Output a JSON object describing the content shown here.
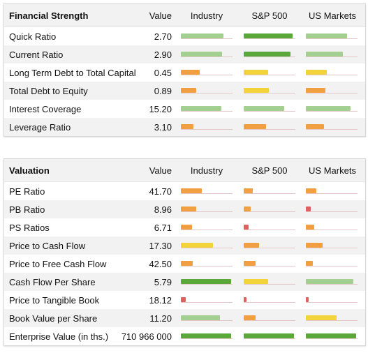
{
  "colors": {
    "dark_green": "#5aa83a",
    "light_green": "#a3cf90",
    "orange": "#f0a040",
    "yellow": "#f2d43a",
    "red": "#e06060"
  },
  "financial_strength": {
    "headers": {
      "title": "Financial Strength",
      "value": "Value",
      "industry": "Industry",
      "sp500": "S&P 500",
      "us_markets": "US Markets"
    },
    "rows": [
      {
        "label": "Quick Ratio",
        "value": "2.70",
        "industry": {
          "level": 0.82,
          "color": "#a3cf90"
        },
        "sp500": {
          "level": 0.95,
          "color": "#5aa83a"
        },
        "us_markets": {
          "level": 0.8,
          "color": "#a3cf90"
        }
      },
      {
        "label": "Current Ratio",
        "value": "2.90",
        "industry": {
          "level": 0.8,
          "color": "#a3cf90"
        },
        "sp500": {
          "level": 0.9,
          "color": "#5aa83a"
        },
        "us_markets": {
          "level": 0.72,
          "color": "#a3cf90"
        }
      },
      {
        "label": "Long Term Debt to Total Capital",
        "value": "0.45",
        "industry": {
          "level": 0.37,
          "color": "#f0a040"
        },
        "sp500": {
          "level": 0.47,
          "color": "#f2d43a"
        },
        "us_markets": {
          "level": 0.4,
          "color": "#f2d43a"
        }
      },
      {
        "label": "Total Debt to Equity",
        "value": "0.89",
        "industry": {
          "level": 0.3,
          "color": "#f0a040"
        },
        "sp500": {
          "level": 0.48,
          "color": "#f2d43a"
        },
        "us_markets": {
          "level": 0.38,
          "color": "#f0a040"
        }
      },
      {
        "label": "Interest Coverage",
        "value": "15.20",
        "industry": {
          "level": 0.78,
          "color": "#a3cf90"
        },
        "sp500": {
          "level": 0.78,
          "color": "#a3cf90"
        },
        "us_markets": {
          "level": 0.86,
          "color": "#a3cf90"
        }
      },
      {
        "label": "Leverage Ratio",
        "value": "3.10",
        "industry": {
          "level": 0.24,
          "color": "#f0a040"
        },
        "sp500": {
          "level": 0.43,
          "color": "#f0a040"
        },
        "us_markets": {
          "level": 0.35,
          "color": "#f0a040"
        }
      }
    ]
  },
  "valuation": {
    "headers": {
      "title": "Valuation",
      "value": "Value",
      "industry": "Industry",
      "sp500": "S&P 500",
      "us_markets": "US Markets"
    },
    "rows": [
      {
        "label": "PE Ratio",
        "value": "41.70",
        "industry": {
          "level": 0.4,
          "color": "#f0a040"
        },
        "sp500": {
          "level": 0.17,
          "color": "#f0a040"
        },
        "us_markets": {
          "level": 0.2,
          "color": "#f0a040"
        }
      },
      {
        "label": "PB Ratio",
        "value": "8.96",
        "industry": {
          "level": 0.3,
          "color": "#f0a040"
        },
        "sp500": {
          "level": 0.14,
          "color": "#f0a040"
        },
        "us_markets": {
          "level": 0.1,
          "color": "#e06060"
        }
      },
      {
        "label": "PS Ratios",
        "value": "6.71",
        "industry": {
          "level": 0.22,
          "color": "#f0a040"
        },
        "sp500": {
          "level": 0.1,
          "color": "#e06060"
        },
        "us_markets": {
          "level": 0.16,
          "color": "#f0a040"
        }
      },
      {
        "label": "Price to Cash Flow",
        "value": "17.30",
        "industry": {
          "level": 0.62,
          "color": "#f2d43a"
        },
        "sp500": {
          "level": 0.3,
          "color": "#f0a040"
        },
        "us_markets": {
          "level": 0.32,
          "color": "#f0a040"
        }
      },
      {
        "label": "Price to Free Cash Flow",
        "value": "42.50",
        "industry": {
          "level": 0.23,
          "color": "#f0a040"
        },
        "sp500": {
          "level": 0.23,
          "color": "#f0a040"
        },
        "us_markets": {
          "level": 0.13,
          "color": "#f0a040"
        }
      },
      {
        "label": "Cash Flow Per Share",
        "value": "5.79",
        "industry": {
          "level": 0.97,
          "color": "#5aa83a"
        },
        "sp500": {
          "level": 0.47,
          "color": "#f2d43a"
        },
        "us_markets": {
          "level": 0.92,
          "color": "#a3cf90"
        }
      },
      {
        "label": "Price to Tangible Book",
        "value": "18.12",
        "industry": {
          "level": 0.1,
          "color": "#e06060"
        },
        "sp500": {
          "level": 0.06,
          "color": "#e06060"
        },
        "us_markets": {
          "level": 0.06,
          "color": "#e06060"
        }
      },
      {
        "label": "Book Value per Share",
        "value": "11.20",
        "industry": {
          "level": 0.75,
          "color": "#a3cf90"
        },
        "sp500": {
          "level": 0.23,
          "color": "#f0a040"
        },
        "us_markets": {
          "level": 0.6,
          "color": "#f2d43a"
        }
      },
      {
        "label": "Enterprise Value (in ths.)",
        "value": "710 966 000",
        "industry": {
          "level": 0.97,
          "color": "#5aa83a"
        },
        "sp500": {
          "level": 0.97,
          "color": "#5aa83a"
        },
        "us_markets": {
          "level": 0.97,
          "color": "#5aa83a"
        }
      }
    ]
  }
}
